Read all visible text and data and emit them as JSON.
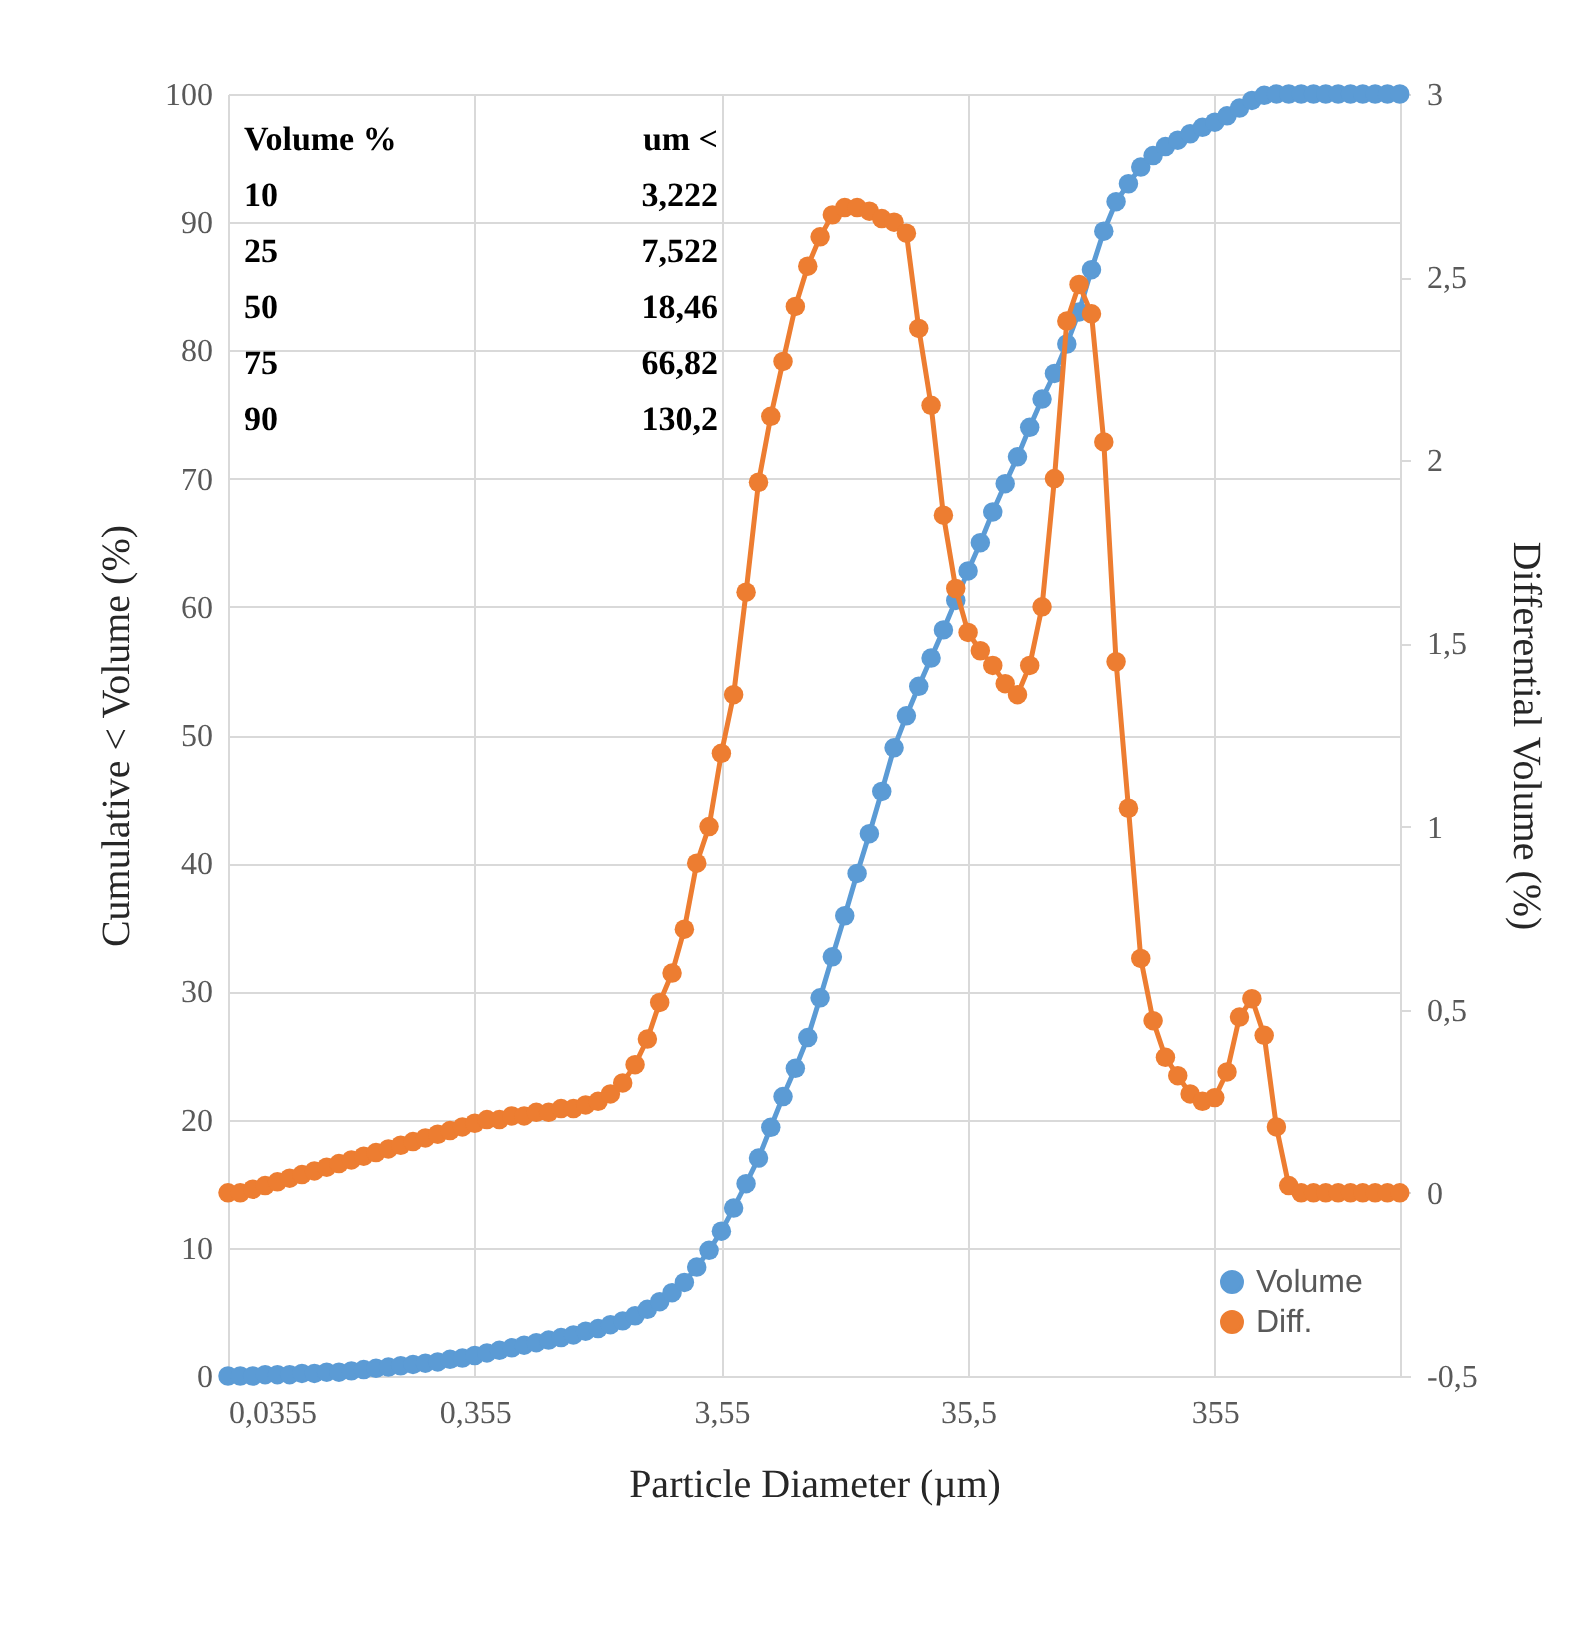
{
  "chart_data": {
    "type": "line",
    "xlabel": "Particle Diameter (µm)",
    "ylabel": "Cumulative < Volume (%)",
    "y2label": "Differential Volume (%)",
    "annotations": [
      "Volume %",
      "um <",
      "10",
      "3,222",
      "25",
      "7,522",
      "50",
      "18,46",
      "75",
      "66,82",
      "90",
      "130,2"
    ],
    "x": [
      0.0355,
      0.0398,
      0.0447,
      0.0502,
      0.0563,
      0.0631,
      0.0708,
      0.0795,
      0.0892,
      0.1,
      0.1123,
      0.126,
      0.1413,
      0.1586,
      0.1779,
      0.1996,
      0.224,
      0.2513,
      0.282,
      0.3164,
      0.355,
      0.398,
      0.447,
      0.502,
      0.563,
      0.631,
      0.708,
      0.795,
      0.892,
      1,
      1.123,
      1.26,
      1.413,
      1.586,
      1.779,
      1.996,
      2.24,
      2.513,
      2.82,
      3.164,
      3.55,
      3.98,
      4.47,
      5.02,
      5.63,
      6.31,
      7.08,
      7.95,
      8.92,
      10,
      11.23,
      12.6,
      14.13,
      15.86,
      17.79,
      19.96,
      22.4,
      25.13,
      28.2,
      31.64,
      35.5,
      39.8,
      44.7,
      50.2,
      56.3,
      63.1,
      70.8,
      79.5,
      89.2,
      100,
      112.3,
      126,
      141.3,
      158.6,
      177.9,
      199.6,
      224,
      251.3,
      282,
      316.4,
      355,
      398,
      447,
      502,
      563,
      631,
      708,
      795,
      892,
      1000,
      1123,
      1260,
      1413,
      1586,
      1779,
      1996
    ],
    "series": [
      {
        "name": "Volume",
        "color": "#5b9bd5",
        "values": [
          0,
          0,
          0,
          0.1,
          0.1,
          0.1,
          0.2,
          0.2,
          0.3,
          0.3,
          0.4,
          0.5,
          0.6,
          0.7,
          0.8,
          0.9,
          1.0,
          1.1,
          1.3,
          1.4,
          1.6,
          1.8,
          2.0,
          2.2,
          2.4,
          2.6,
          2.8,
          3.0,
          3.2,
          3.5,
          3.7,
          4.0,
          4.3,
          4.7,
          5.2,
          5.8,
          6.5,
          7.3,
          8.5,
          9.8,
          11.3,
          13.1,
          15.0,
          17.0,
          19.4,
          21.8,
          24.0,
          26.4,
          29.5,
          32.7,
          35.9,
          39.2,
          42.3,
          45.6,
          49.0,
          51.5,
          53.8,
          56.0,
          58.2,
          60.5,
          62.8,
          65.0,
          67.4,
          69.6,
          71.7,
          74.0,
          76.2,
          78.2,
          80.5,
          83.0,
          86.3,
          89.3,
          91.6,
          93.0,
          94.3,
          95.2,
          95.9,
          96.4,
          96.9,
          97.4,
          97.8,
          98.3,
          98.9,
          99.5,
          99.9,
          100,
          100,
          100,
          100,
          100,
          100,
          100,
          100,
          100,
          100,
          100
        ]
      },
      {
        "name": "Diff.",
        "color": "#ed7d31",
        "axis": "y2",
        "values": [
          0,
          0,
          0.01,
          0.02,
          0.03,
          0.04,
          0.05,
          0.06,
          0.07,
          0.08,
          0.09,
          0.1,
          0.11,
          0.12,
          0.13,
          0.14,
          0.15,
          0.16,
          0.17,
          0.18,
          0.19,
          0.2,
          0.2,
          0.21,
          0.21,
          0.22,
          0.22,
          0.23,
          0.23,
          0.24,
          0.25,
          0.27,
          0.3,
          0.35,
          0.42,
          0.52,
          0.6,
          0.72,
          0.9,
          1.0,
          1.2,
          1.36,
          1.64,
          1.94,
          2.12,
          2.27,
          2.42,
          2.53,
          2.61,
          2.67,
          2.69,
          2.69,
          2.68,
          2.66,
          2.65,
          2.62,
          2.36,
          2.15,
          1.85,
          1.65,
          1.53,
          1.48,
          1.44,
          1.39,
          1.36,
          1.44,
          1.6,
          1.95,
          2.38,
          2.48,
          2.4,
          2.05,
          1.45,
          1.05,
          0.64,
          0.47,
          0.37,
          0.32,
          0.27,
          0.25,
          0.26,
          0.33,
          0.48,
          0.53,
          0.43,
          0.18,
          0.02,
          0,
          0,
          0,
          0,
          0,
          0,
          0,
          0,
          0
        ]
      }
    ],
    "log": "x",
    "xlim": [
      0.0355,
      2000
    ],
    "xticks": [
      {
        "value": 0.0355,
        "label": "0,0355"
      },
      {
        "value": 0.355,
        "label": "0,355"
      },
      {
        "value": 3.55,
        "label": "3,55"
      },
      {
        "value": 35.5,
        "label": "35,5"
      },
      355
    ],
    "ylim": [
      0,
      100
    ],
    "yticks": [
      0,
      10,
      20,
      30,
      40,
      50,
      60,
      70,
      80,
      90,
      100
    ],
    "y2lim": [
      -0.5,
      3
    ],
    "y2ticks": [
      {
        "value": -0.5,
        "label": "-0,5"
      },
      0,
      {
        "value": 0.5,
        "label": "0,5"
      },
      1,
      {
        "value": 1.5,
        "label": "1,5"
      },
      2,
      {
        "value": 2.5,
        "label": "2,5"
      },
      3
    ],
    "grid": true,
    "legend": "bottom right",
    "marker": "circle",
    "line_style": "solid"
  }
}
